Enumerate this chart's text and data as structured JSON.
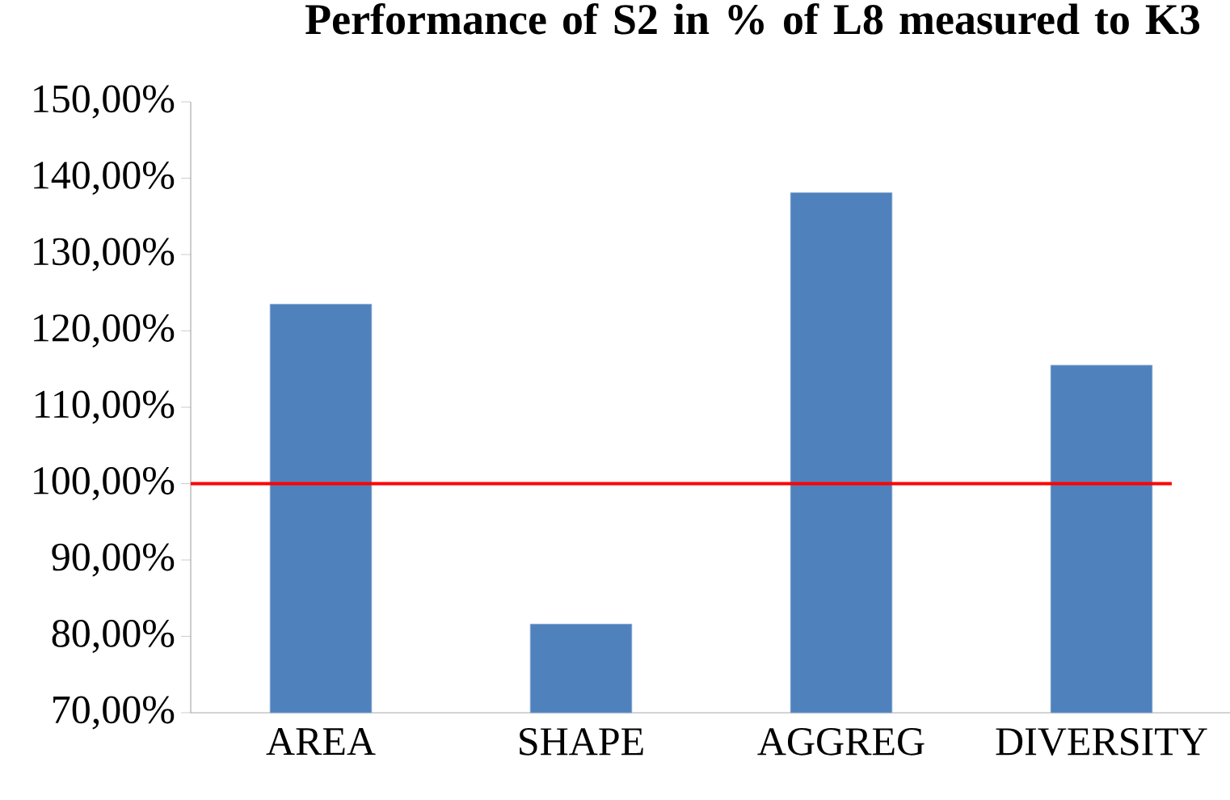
{
  "chart_data": {
    "type": "bar",
    "title": "Performance of S2 in % of L8 measured to K3",
    "categories": [
      "AREA",
      "SHAPE",
      "AGGREG",
      "DIVERSITY"
    ],
    "values": [
      123.5,
      81.6,
      138.1,
      115.5
    ],
    "color": "#4f81bd",
    "ylim": [
      70,
      150
    ],
    "yticks": [
      {
        "value": 70,
        "label": "70,00%"
      },
      {
        "value": 80,
        "label": "80,00%"
      },
      {
        "value": 90,
        "label": "90,00%"
      },
      {
        "value": 100,
        "label": "100,00%"
      },
      {
        "value": 110,
        "label": "110,00%"
      },
      {
        "value": 120,
        "label": "120,00%"
      },
      {
        "value": 130,
        "label": "130,00%"
      },
      {
        "value": 140,
        "label": "140,00%"
      },
      {
        "value": 150,
        "label": "150,00%"
      }
    ],
    "ref_lines": [
      {
        "axis": "y",
        "value": 100,
        "color": "#ff0000"
      }
    ],
    "grid": false
  }
}
